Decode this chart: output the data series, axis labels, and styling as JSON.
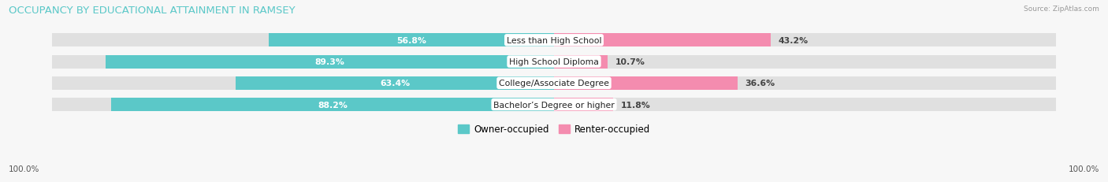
{
  "title": "OCCUPANCY BY EDUCATIONAL ATTAINMENT IN RAMSEY",
  "source": "Source: ZipAtlas.com",
  "categories": [
    "Bachelor’s Degree or higher",
    "College/Associate Degree",
    "High School Diploma",
    "Less than High School"
  ],
  "owner_pct": [
    88.2,
    63.4,
    89.3,
    56.8
  ],
  "renter_pct": [
    11.8,
    36.6,
    10.7,
    43.2
  ],
  "owner_color": "#5bc8c8",
  "renter_color": "#f48caf",
  "bar_bg_color": "#e0e0e0",
  "bg_color": "#f7f7f7",
  "bar_height": 0.62,
  "title_fontsize": 9.5,
  "label_fontsize": 7.8,
  "axis_label_fontsize": 7.5,
  "legend_fontsize": 8.5
}
